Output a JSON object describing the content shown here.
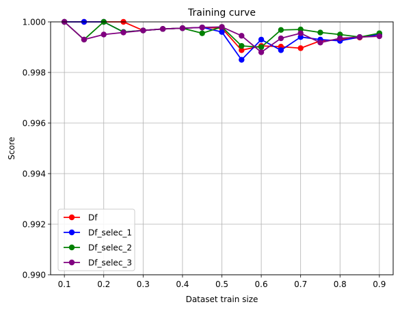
{
  "chart_data": {
    "type": "line",
    "title": "Training curve",
    "xlabel": "Dataset train size",
    "ylabel": "Score",
    "xlim": [
      0.065,
      0.935
    ],
    "ylim": [
      0.99,
      1.0
    ],
    "xticks": [
      "0.1",
      "0.2",
      "0.3",
      "0.4",
      "0.5",
      "0.6",
      "0.7",
      "0.8",
      "0.9"
    ],
    "yticks": [
      "0.990",
      "0.992",
      "0.994",
      "0.996",
      "0.998",
      "1.000"
    ],
    "grid": true,
    "legend_position": "lower left",
    "marker": "circle",
    "x": [
      0.1,
      0.15,
      0.2,
      0.25,
      0.3,
      0.35,
      0.4,
      0.45,
      0.5,
      0.55,
      0.6,
      0.65,
      0.7,
      0.75,
      0.8,
      0.85,
      0.9
    ],
    "series": [
      {
        "name": "Df",
        "color": "#ff0000",
        "values": [
          1.0,
          1.0,
          1.0,
          1.0,
          0.99966,
          0.99972,
          0.99975,
          0.99978,
          0.99975,
          0.99888,
          0.99905,
          0.99902,
          0.99896,
          0.99925,
          0.9993,
          0.99938,
          0.9995
        ]
      },
      {
        "name": "Df_selec_1",
        "color": "#0000ff",
        "values": [
          1.0,
          1.0,
          1.0,
          0.9996,
          0.99966,
          0.99972,
          0.99975,
          0.99978,
          0.9996,
          0.9985,
          0.9993,
          0.99888,
          0.9994,
          0.9993,
          0.99925,
          0.9994,
          0.9995
        ]
      },
      {
        "name": "Df_selec_2",
        "color": "#008000",
        "values": [
          1.0,
          0.9993,
          1.0,
          0.9996,
          0.99966,
          0.99972,
          0.99975,
          0.99955,
          0.9998,
          0.99905,
          0.999,
          0.99968,
          0.9997,
          0.99958,
          0.9995,
          0.9994,
          0.99955
        ]
      },
      {
        "name": "Df_selec_3",
        "color": "#800080",
        "values": [
          1.0,
          0.9993,
          0.9995,
          0.99958,
          0.99966,
          0.99972,
          0.99975,
          0.99978,
          0.9998,
          0.99945,
          0.9988,
          0.99935,
          0.99955,
          0.99918,
          0.99935,
          0.9994,
          0.99943
        ]
      }
    ]
  }
}
